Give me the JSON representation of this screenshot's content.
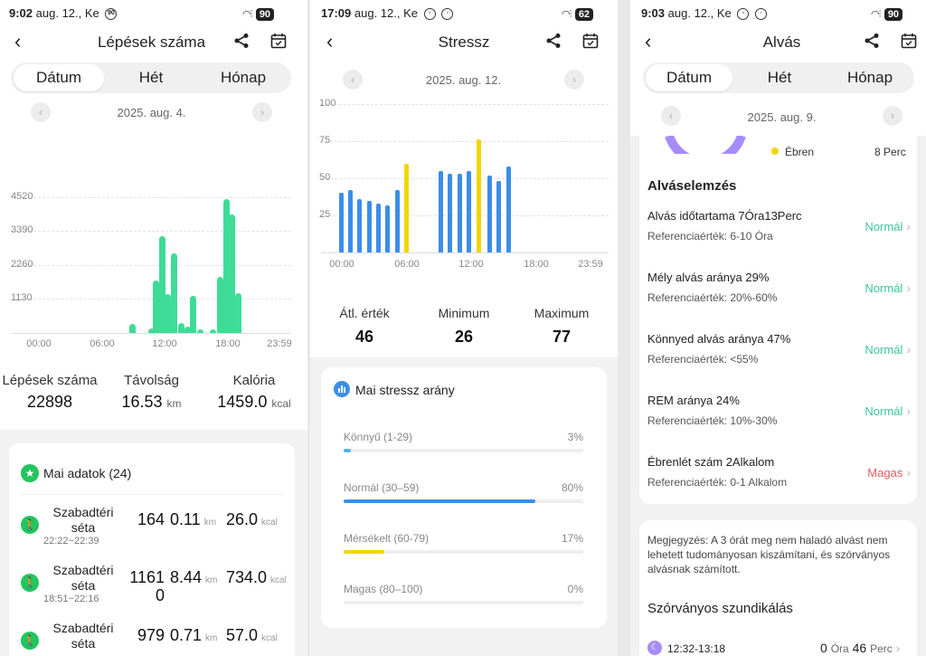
{
  "panel1": {
    "status": {
      "time": "9:02",
      "date": "aug. 12., Ke",
      "badge": "90",
      "battery": "90"
    },
    "title": "Lépések száma",
    "tabs": [
      "Dátum",
      "Hét",
      "Hónap"
    ],
    "date": "2025. aug. 4.",
    "chart_data": {
      "type": "bar",
      "y_ticks": [
        "4520",
        "3390",
        "2260",
        "1130"
      ],
      "ylim": [
        0,
        5650
      ],
      "x_ticks": [
        "00:00",
        "06:00",
        "12:00",
        "18:00",
        "23:59"
      ],
      "x_range": [
        0,
        24
      ],
      "color": "#3ddc97",
      "bars": [
        {
          "x": 9.3,
          "y": 300
        },
        {
          "x": 11.2,
          "y": 150
        },
        {
          "x": 11.7,
          "y": 1750
        },
        {
          "x": 12.3,
          "y": 3220
        },
        {
          "x": 12.9,
          "y": 1300
        },
        {
          "x": 13.5,
          "y": 2630
        },
        {
          "x": 14.2,
          "y": 320
        },
        {
          "x": 14.8,
          "y": 220
        },
        {
          "x": 15.4,
          "y": 1220
        },
        {
          "x": 16.1,
          "y": 120
        },
        {
          "x": 17.4,
          "y": 130
        },
        {
          "x": 18.1,
          "y": 1870
        },
        {
          "x": 18.7,
          "y": 4450
        },
        {
          "x": 19.3,
          "y": 3950
        },
        {
          "x": 19.9,
          "y": 1320
        }
      ]
    },
    "stats": [
      {
        "label": "Lépések száma",
        "value": "22898",
        "unit": ""
      },
      {
        "label": "Távolság",
        "value": "16.53",
        "unit": "km"
      },
      {
        "label": "Kalória",
        "value": "1459.0",
        "unit": "kcal"
      }
    ],
    "card_title": "Mai adatok (24)",
    "activities": [
      {
        "name": "Szabadtéri séta",
        "time": "22:22~22:39",
        "steps": "164",
        "km": "0.11",
        "km_unit": "km",
        "kcal": "26.0",
        "kcal_unit": "kcal"
      },
      {
        "name": "Szabadtéri séta",
        "time": "18:51~22:16",
        "steps": "1161\n0",
        "km": "8.44",
        "km_unit": "km",
        "kcal": "734.0",
        "kcal_unit": "kcal"
      },
      {
        "name": "Szabadtéri séta",
        "time": "",
        "steps": "979",
        "km": "0.71",
        "km_unit": "km",
        "kcal": "57.0",
        "kcal_unit": "kcal"
      }
    ]
  },
  "panel2": {
    "status": {
      "time": "17:09",
      "date": "aug. 12., Ke",
      "battery": "62"
    },
    "title": "Stressz",
    "date": "2025. aug. 12.",
    "chart_data": {
      "type": "bar",
      "y_ticks": [
        "100",
        "75",
        "50",
        "25"
      ],
      "ylim": [
        0,
        100
      ],
      "x_ticks": [
        "00:00",
        "06:00",
        "12:00",
        "18:00",
        "23:59"
      ],
      "x_range": [
        0,
        24
      ],
      "bars": [
        {
          "x": 0.0,
          "y": 40,
          "c": "#3b8ee8"
        },
        {
          "x": 0.9,
          "y": 42,
          "c": "#3b8ee8"
        },
        {
          "x": 1.8,
          "y": 36,
          "c": "#3b8ee8"
        },
        {
          "x": 2.7,
          "y": 35,
          "c": "#3b8ee8"
        },
        {
          "x": 3.6,
          "y": 33,
          "c": "#3b8ee8"
        },
        {
          "x": 4.5,
          "y": 32,
          "c": "#3b8ee8"
        },
        {
          "x": 5.4,
          "y": 42,
          "c": "#3b8ee8"
        },
        {
          "x": 6.3,
          "y": 60,
          "c": "#f2d600"
        },
        {
          "x": 9.6,
          "y": 55,
          "c": "#3b8ee8"
        },
        {
          "x": 10.5,
          "y": 53,
          "c": "#3b8ee8"
        },
        {
          "x": 11.4,
          "y": 53,
          "c": "#3b8ee8"
        },
        {
          "x": 12.3,
          "y": 55,
          "c": "#3b8ee8"
        },
        {
          "x": 13.3,
          "y": 76,
          "c": "#f2d600"
        },
        {
          "x": 14.3,
          "y": 52,
          "c": "#3b8ee8"
        },
        {
          "x": 15.2,
          "y": 48,
          "c": "#3b8ee8"
        },
        {
          "x": 16.1,
          "y": 58,
          "c": "#3b8ee8"
        }
      ]
    },
    "stats": [
      {
        "label": "Átl. érték",
        "value": "46"
      },
      {
        "label": "Minimum",
        "value": "26"
      },
      {
        "label": "Maximum",
        "value": "77"
      }
    ],
    "card_title": "Mai stressz arány",
    "levels": [
      {
        "label": "Könnyű (1-29)",
        "pct": "3%",
        "fraction": 0.03,
        "color": "#4fb3e8"
      },
      {
        "label": "Normál (30–59)",
        "pct": "80%",
        "fraction": 0.8,
        "color": "#3b8ee8"
      },
      {
        "label": "Mérsékelt (60-79)",
        "pct": "17%",
        "fraction": 0.17,
        "color": "#f2d600"
      },
      {
        "label": "Magas (80–100)",
        "pct": "0%",
        "fraction": 0.0,
        "color": "#e85050"
      }
    ]
  },
  "panel3": {
    "status": {
      "time": "9:03",
      "date": "aug. 12., Ke",
      "battery": "90"
    },
    "title": "Alvás",
    "tabs": [
      "Dátum",
      "Hét",
      "Hónap"
    ],
    "date": "2025. aug. 9.",
    "awake_legend": "Ébren",
    "awake_value": "8",
    "awake_unit": "Perc",
    "analysis_title": "Alváselemzés",
    "analysis": [
      {
        "title": "Alvás időtartama 7Óra13Perc",
        "ref": "Referenciaérték: 6-10 Óra",
        "status": "Normál",
        "color": "#3cc39a"
      },
      {
        "title": "Mély alvás aránya 29%",
        "ref": "Referenciaérték: 20%-60%",
        "status": "Normál",
        "color": "#3cc39a"
      },
      {
        "title": "Könnyed alvás aránya 47%",
        "ref": "Referenciaérték: <55%",
        "status": "Normál",
        "color": "#3cc39a"
      },
      {
        "title": "REM aránya 24%",
        "ref": "Referenciaérték: 10%-30%",
        "status": "Normál",
        "color": "#3cc39a"
      },
      {
        "title": "Ébrenlét szám 2Alkalom",
        "ref": "Referenciaérték: 0-1 Alkalom",
        "status": "Magas",
        "color": "#e05a5a"
      }
    ],
    "note": "Megjegyzés: A 3 órát meg nem haladó alvást nem lehetett tudományosan kiszámítani, és szórványos alvásnak számított.",
    "nap_title": "Szórványos szundikálás",
    "nap_time": "12:32-13:18",
    "nap_hours": "0",
    "nap_hours_unit": "Óra",
    "nap_minutes": "46",
    "nap_minutes_unit": "Perc"
  }
}
